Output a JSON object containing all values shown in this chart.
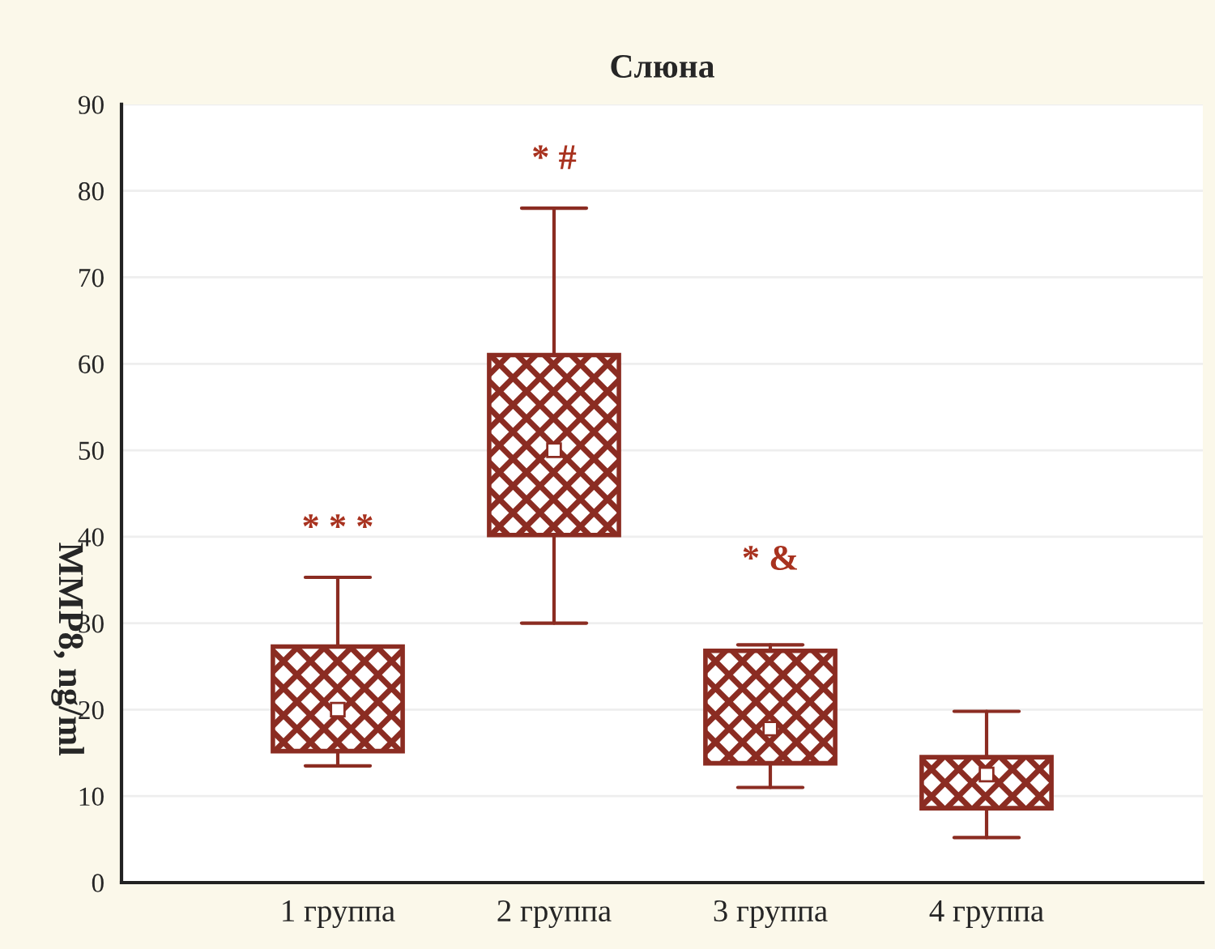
{
  "chart_data": {
    "type": "box",
    "title": "Слюна",
    "ylabel": "MMP8, ng/ml",
    "categories": [
      "1 группа",
      "2 группа",
      "3 группа",
      "4 группа"
    ],
    "boxes": [
      {
        "low": 13.5,
        "q1": 15.2,
        "median": 20,
        "q3": 27.3,
        "high": 35.3
      },
      {
        "low": 30,
        "q1": 40.2,
        "median": 50,
        "q3": 61,
        "high": 78
      },
      {
        "low": 11,
        "q1": 13.8,
        "median": 17.8,
        "q3": 26.8,
        "high": 27.5
      },
      {
        "low": 5.2,
        "q1": 8.6,
        "median": 12.5,
        "q3": 14.5,
        "high": 19.8
      }
    ],
    "color": "#8b2c22",
    "ylim": [
      0,
      90
    ],
    "yticks": [
      0,
      10,
      20,
      30,
      40,
      50,
      60,
      70,
      80,
      90
    ],
    "grid": "y",
    "annotations": [
      "* * *",
      "* #",
      "* &"
    ]
  }
}
